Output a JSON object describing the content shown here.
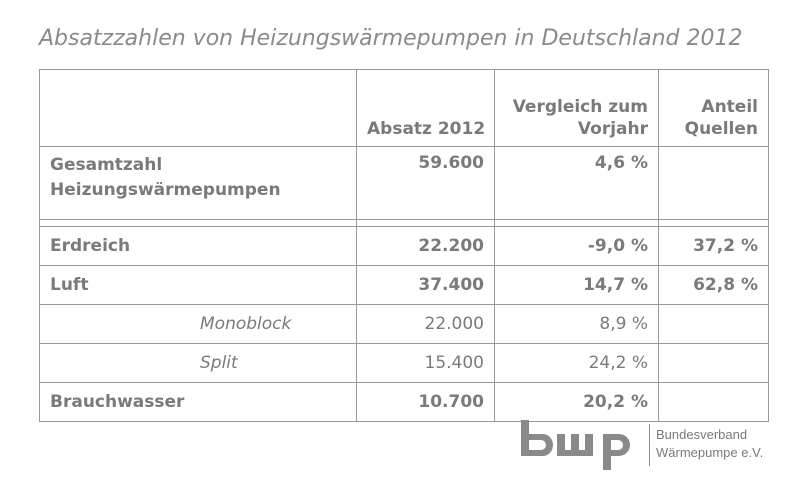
{
  "title": "Absatzzahlen von Heizungswärmepumpen in Deutschland 2012",
  "table": {
    "headers": {
      "col1": "",
      "col2": "Absatz 2012",
      "col3_line1": "Vergleich zum",
      "col3_line2": "Vorjahr",
      "col4_line1": "Anteil",
      "col4_line2": "Quellen"
    },
    "total": {
      "label_line1": "Gesamtzahl",
      "label_line2": "Heizungswärmepumpen",
      "absatz": "59.600",
      "vergleich": "4,6 %",
      "anteil": ""
    },
    "rows": [
      {
        "label": "Erdreich",
        "absatz": "22.200",
        "vergleich": "-9,0 %",
        "anteil": "37,2 %"
      },
      {
        "label": "Luft",
        "absatz": "37.400",
        "vergleich": "14,7 %",
        "anteil": "62,8 %"
      },
      {
        "label": "Monoblock",
        "absatz": "22.000",
        "vergleich": "8,9 %",
        "anteil": ""
      },
      {
        "label": "Split",
        "absatz": "15.400",
        "vergleich": "24,2 %",
        "anteil": ""
      },
      {
        "label": "Brauchwasser",
        "absatz": "10.700",
        "vergleich": "20,2 %",
        "anteil": ""
      }
    ]
  },
  "logo": {
    "mark": "bwp",
    "line1": "Bundesverband",
    "line2": "Wärmepumpe e.V."
  },
  "colors": {
    "text": "#7a7a7a",
    "border": "#9a9a9a",
    "logo": "#8a8a8a"
  }
}
